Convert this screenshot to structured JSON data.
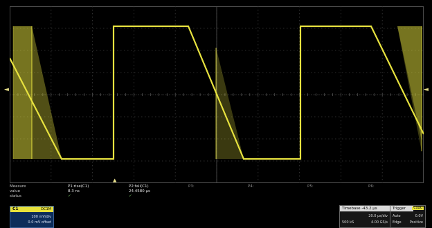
{
  "trace": {
    "color": "#e7e23f",
    "grid_color": "#3a3a3a"
  },
  "markers": {
    "left_zero": "◄",
    "trigger_position": "▲",
    "right_level": "◄"
  },
  "measurements": {
    "row_labels": {
      "measure": "Measure",
      "value": "value",
      "status": "status"
    },
    "columns": [
      {
        "param": "P1:rise(C1)",
        "value": "8.3 ns",
        "status": "✓"
      },
      {
        "param": "P2:fall(C1)",
        "value": "24.4580 µs",
        "status": "✓"
      },
      {
        "param": "P3:",
        "value": "",
        "status": ""
      },
      {
        "param": "P4:",
        "value": "",
        "status": ""
      },
      {
        "param": "P5:",
        "value": "",
        "status": ""
      },
      {
        "param": "P6:",
        "value": "",
        "status": ""
      }
    ]
  },
  "channel": {
    "name": "C1",
    "mode": "DC1M",
    "vdiv": "100 mV/div",
    "offset": "0.0 mV offset",
    "color": "#e8e23a"
  },
  "timebase": {
    "title": "Timebase -43.2 µs",
    "line1_right": "20.0 µs/div",
    "line2_left": "500 kS",
    "line2_right": "4.00 GS/s"
  },
  "trigger": {
    "title": "Trigger",
    "badge": "C1DC",
    "line1_left": "Auto",
    "line1_right": "0.0V",
    "line2_left": "Edge",
    "line2_right": "Positive"
  }
}
